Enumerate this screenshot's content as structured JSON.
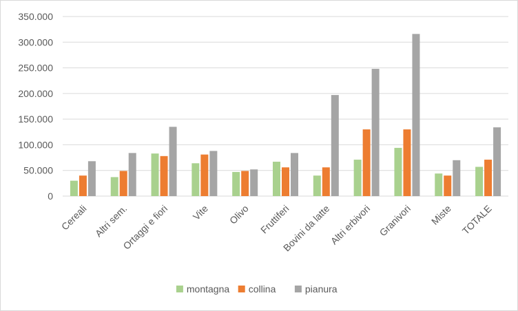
{
  "chart_data": {
    "type": "bar",
    "title": "",
    "xlabel": "",
    "ylabel": "",
    "ylim": [
      0,
      350000
    ],
    "yticks": [
      "0",
      "50.000",
      "100.000",
      "150.000",
      "200.000",
      "250.000",
      "300.000",
      "350.000"
    ],
    "ytick_values": [
      0,
      50000,
      100000,
      150000,
      200000,
      250000,
      300000,
      350000
    ],
    "grid": true,
    "legend_position": "bottom",
    "categories": [
      "Cereali",
      "Altri sem.",
      "Ortaggi e fiori",
      "Vite",
      "Olivo",
      "Fruttiferi",
      "Bovini da latte",
      "Altri erbivori",
      "Granivori",
      "Miste",
      "TOTALE"
    ],
    "series": [
      {
        "name": "montagna",
        "color": "#a9d18e",
        "values": [
          30000,
          37000,
          83000,
          64000,
          47000,
          67000,
          40000,
          71000,
          94000,
          44000,
          57000
        ]
      },
      {
        "name": "collina",
        "color": "#ed7d31",
        "values": [
          40000,
          49000,
          78000,
          81000,
          49000,
          56000,
          56000,
          130000,
          130000,
          40000,
          71000
        ]
      },
      {
        "name": "pianura",
        "color": "#a5a5a5",
        "values": [
          68000,
          84000,
          135000,
          88000,
          52000,
          84000,
          197000,
          248000,
          316000,
          70000,
          134000
        ]
      }
    ]
  }
}
